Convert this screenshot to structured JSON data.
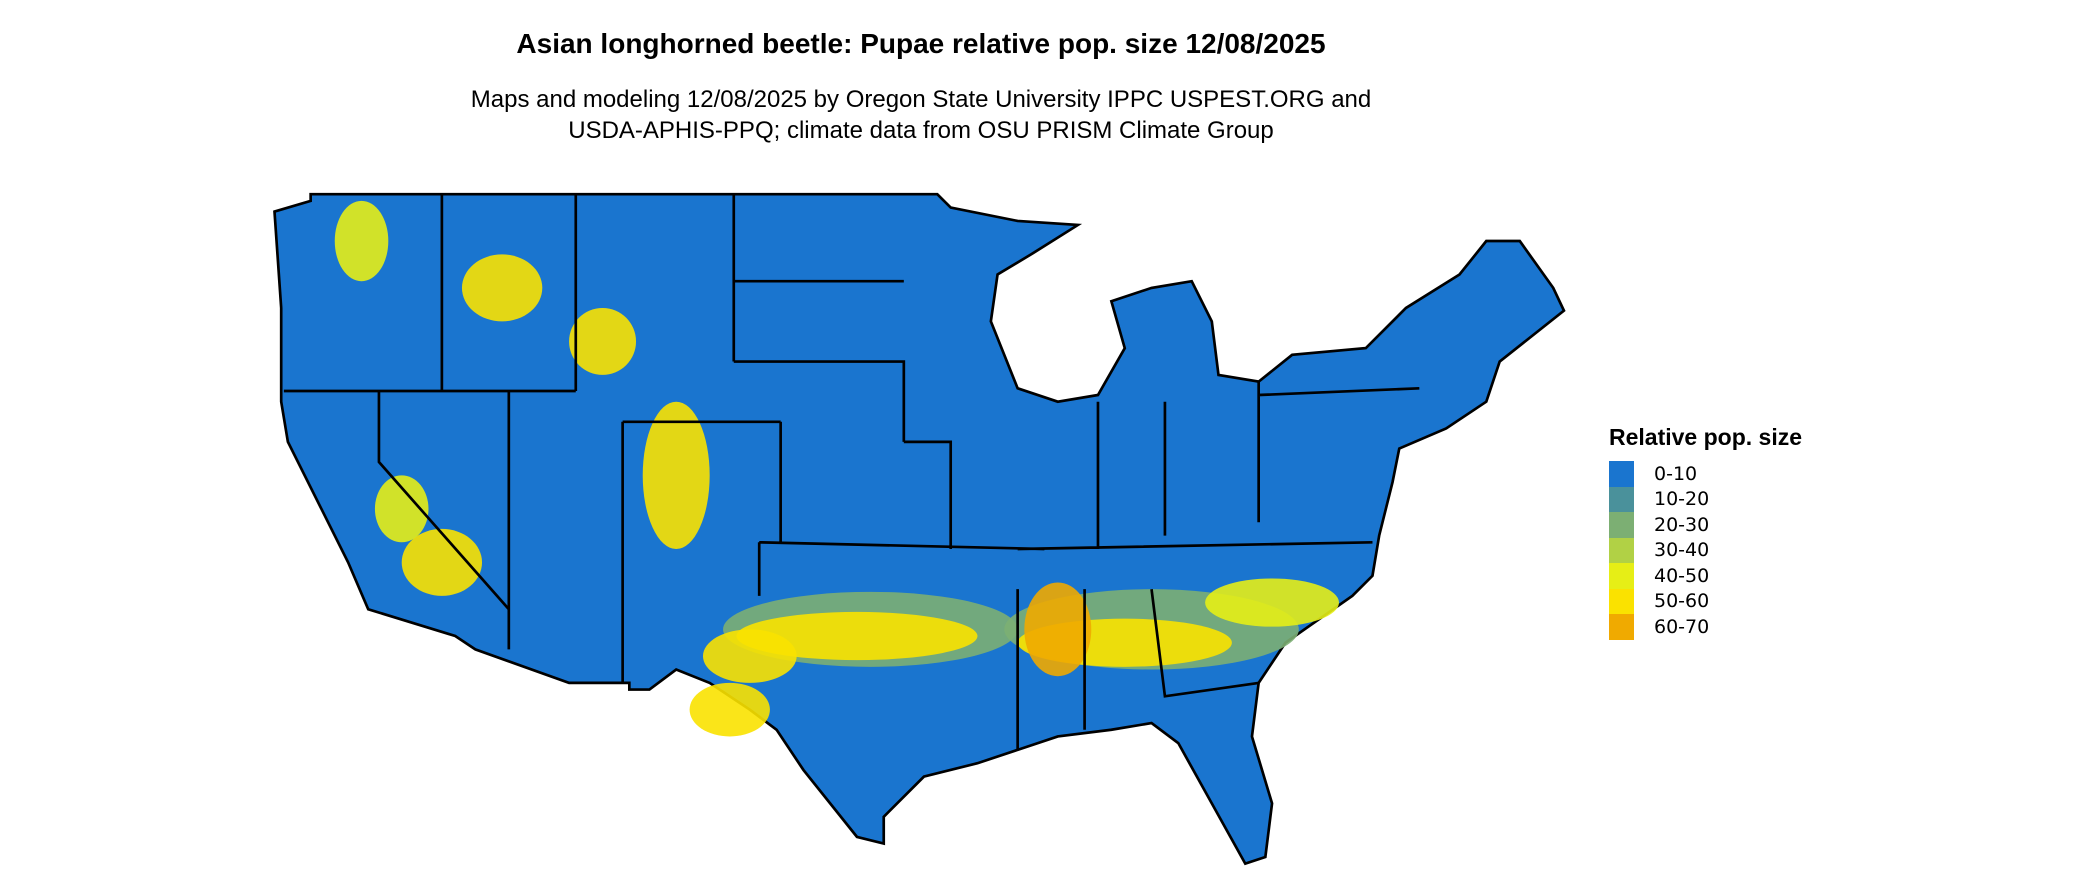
{
  "title": "Asian longhorned beetle: Pupae relative pop. size 12/08/2025",
  "subtitle_lines": [
    "Maps and modeling 12/08/2025 by Oregon State University IPPC USPEST.ORG and",
    "USDA-APHIS-PPQ; climate data from OSU PRISM Climate Group"
  ],
  "chart_data": {
    "type": "heatmap",
    "title": "Asian longhorned beetle: Pupae relative pop. size 12/08/2025",
    "region": "Contiguous United States with state borders",
    "legend": {
      "title": "Relative pop. size",
      "placement": "right",
      "classes": [
        {
          "label": "0-10",
          "color": "#1a75cf"
        },
        {
          "label": "10-20",
          "color": "#4a919b"
        },
        {
          "label": "20-30",
          "color": "#7caf73"
        },
        {
          "label": "30-40",
          "color": "#b1d145"
        },
        {
          "label": "40-50",
          "color": "#e6ee16"
        },
        {
          "label": "50-60",
          "color": "#fae200"
        },
        {
          "label": "60-70",
          "color": "#f0aa00"
        }
      ]
    },
    "dominant_class": "0-10",
    "hotspot_regions": [
      {
        "area": "Southern Plains band (TX/OK)",
        "class": "50-60"
      },
      {
        "area": "Deep South band (MS/AL/GA/SC)",
        "class": "60-70"
      },
      {
        "area": "Rocky Mountains (CO/WY/ID/MT)",
        "class": "50-60"
      },
      {
        "area": "Southwest deserts (AZ/NV/CA)",
        "class": "50-60"
      }
    ]
  }
}
